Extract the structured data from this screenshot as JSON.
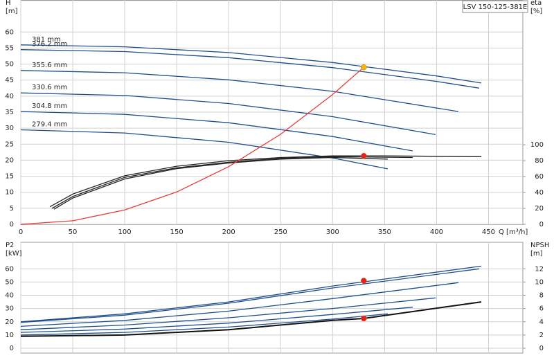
{
  "chart_data": [
    {
      "type": "line",
      "title": "LSV 150-125-381E",
      "y_label": "H",
      "y_unit": "[m]",
      "y2_label": "eta",
      "y2_unit": "[%]",
      "x_label": "Q [m³/h]",
      "xlim": [
        0,
        483
      ],
      "xticks": [
        0,
        50,
        100,
        150,
        200,
        250,
        300,
        350,
        400,
        450
      ],
      "ylim": [
        0,
        70
      ],
      "yticks": [
        0,
        5,
        10,
        15,
        20,
        25,
        30,
        35,
        40,
        45,
        50,
        55,
        60
      ],
      "y2lim": [
        0,
        282
      ],
      "y2ticks": [
        0,
        20,
        40,
        60,
        80,
        100
      ],
      "grid": true,
      "xtick_labels": true,
      "series": [
        {
          "name": "381 mm",
          "color": "#1f4e8c",
          "x": [
            0,
            100,
            200,
            300,
            400,
            443
          ],
          "values": [
            56,
            55.4,
            53.6,
            50.5,
            46.3,
            44.1
          ]
        },
        {
          "name": "376.2 mm",
          "color": "#1f4e8c",
          "x": [
            0,
            100,
            200,
            300,
            400,
            441
          ],
          "values": [
            54.5,
            53.9,
            52,
            48.9,
            44.6,
            42.5
          ]
        },
        {
          "name": "355.6 mm",
          "color": "#1f4e8c",
          "x": [
            0,
            100,
            200,
            300,
            421
          ],
          "values": [
            48,
            47.3,
            45.1,
            41.5,
            35.2
          ]
        },
        {
          "name": "330.6 mm",
          "color": "#1f4e8c",
          "x": [
            0,
            100,
            200,
            300,
            399
          ],
          "values": [
            41,
            40.2,
            37.7,
            33.6,
            28
          ]
        },
        {
          "name": "304.8 mm",
          "color": "#1f4e8c",
          "x": [
            0,
            100,
            200,
            300,
            377
          ],
          "values": [
            35.2,
            34.3,
            31.7,
            27.4,
            22.9
          ]
        },
        {
          "name": "279.4 mm",
          "color": "#1f4e8c",
          "x": [
            0,
            100,
            200,
            300,
            353
          ],
          "values": [
            29.5,
            28.5,
            25.6,
            20.7,
            17.3
          ]
        },
        {
          "color": "#222222",
          "axis": "y2",
          "x": [
            28,
            50,
            100,
            150,
            200,
            250,
            300,
            350,
            443
          ],
          "values": [
            22,
            38,
            61,
            73,
            80,
            84,
            86,
            86,
            85
          ]
        },
        {
          "color": "#222222",
          "axis": "y2",
          "x": [
            30,
            50,
            100,
            150,
            200,
            250,
            300,
            377
          ],
          "values": [
            20,
            35,
            59,
            71,
            78,
            83,
            85,
            84
          ]
        },
        {
          "color": "#222222",
          "axis": "y2",
          "x": [
            32,
            50,
            100,
            150,
            200,
            250,
            300,
            353
          ],
          "values": [
            19,
            33,
            57,
            70,
            77,
            82,
            84,
            82
          ]
        },
        {
          "color": "#e83a3a",
          "x": [
            0,
            50,
            100,
            150,
            200,
            250,
            300,
            330
          ],
          "values": [
            0,
            1.1,
            4.5,
            10.1,
            18,
            28.1,
            40.5,
            49
          ]
        }
      ],
      "points": [
        {
          "x": 330,
          "value": 49,
          "color": "#f5b800"
        },
        {
          "x": 330,
          "value": 86,
          "axis": "y2",
          "color": "#e82020"
        }
      ]
    },
    {
      "type": "line",
      "y_label": "P2",
      "y_unit": "[kW]",
      "y2_label": "NPSH",
      "y2_unit": "[m]",
      "xlim": [
        0,
        483
      ],
      "xticks": [
        0,
        50,
        100,
        150,
        200,
        250,
        300,
        350,
        400,
        450
      ],
      "ylim": [
        0,
        80
      ],
      "yticks": [
        0,
        10,
        20,
        30,
        40,
        50,
        60
      ],
      "y2lim": [
        0,
        16
      ],
      "y2ticks": [
        0,
        2,
        4,
        6,
        8,
        10,
        12
      ],
      "grid": true,
      "xtick_labels": false,
      "series": [
        {
          "color": "#1f4e8c",
          "x": [
            0,
            100,
            200,
            300,
            443
          ],
          "values": [
            20,
            26,
            35,
            47,
            62
          ]
        },
        {
          "color": "#1f4e8c",
          "x": [
            0,
            100,
            200,
            300,
            441
          ],
          "values": [
            19.5,
            25,
            34,
            45.5,
            60
          ]
        },
        {
          "color": "#1f4e8c",
          "x": [
            0,
            100,
            200,
            300,
            421
          ],
          "values": [
            16.5,
            21,
            28,
            37.5,
            49.5
          ]
        },
        {
          "color": "#1f4e8c",
          "x": [
            0,
            100,
            200,
            300,
            399
          ],
          "values": [
            14,
            17.5,
            23,
            30,
            38
          ]
        },
        {
          "color": "#1f4e8c",
          "x": [
            0,
            100,
            200,
            300,
            377
          ],
          "values": [
            12,
            14.5,
            19,
            25.5,
            31
          ]
        },
        {
          "color": "#1f4e8c",
          "x": [
            0,
            100,
            200,
            300,
            353
          ],
          "values": [
            10,
            12,
            16,
            22,
            26
          ]
        },
        {
          "color": "#111111",
          "axis": "y2",
          "x": [
            0,
            100,
            200,
            300,
            330,
            443
          ],
          "values": [
            1.8,
            2,
            2.8,
            4.2,
            4.5,
            7
          ]
        }
      ],
      "points": [
        {
          "x": 330,
          "value": 51,
          "color": "#e82020"
        },
        {
          "x": 330,
          "value": 4.5,
          "axis": "y2",
          "color": "#e82020"
        }
      ]
    }
  ]
}
